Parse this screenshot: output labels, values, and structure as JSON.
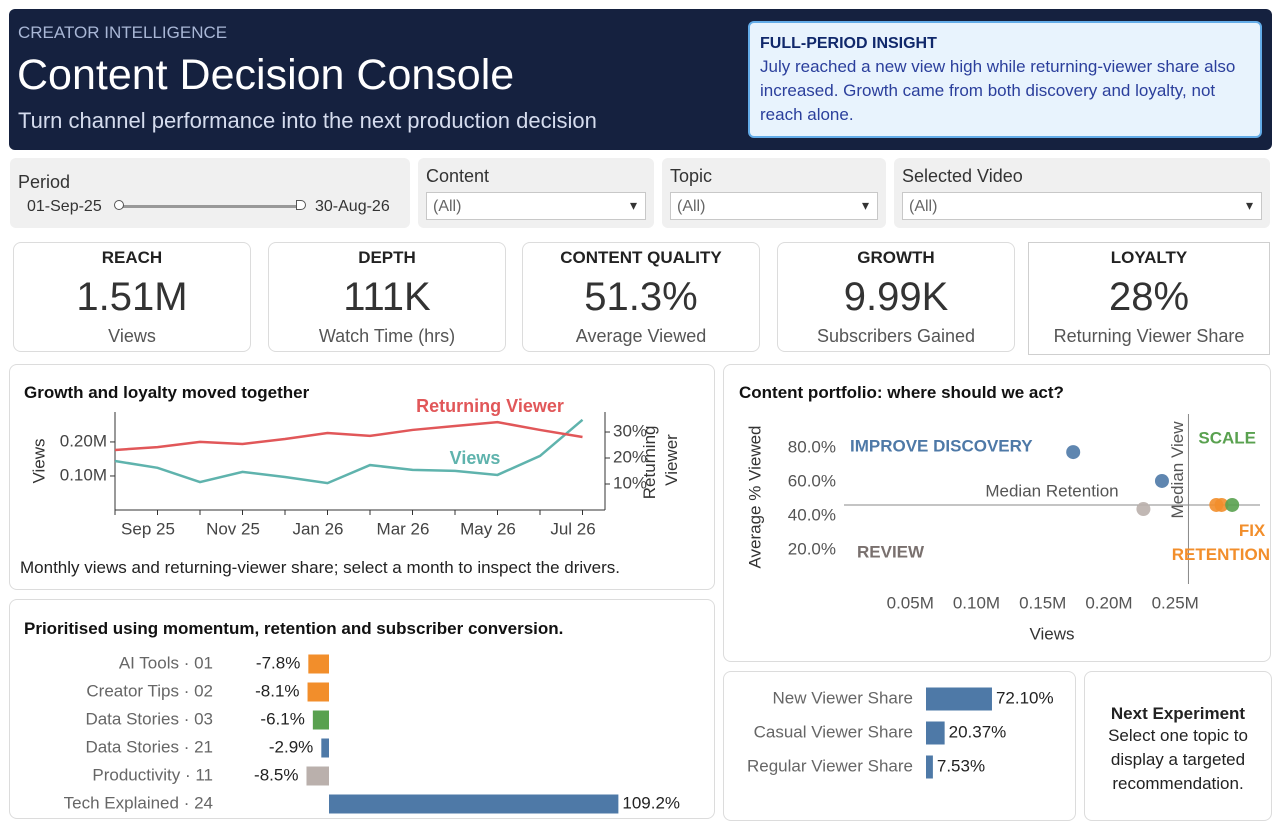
{
  "header": {
    "eyebrow": "CREATOR INTELLIGENCE",
    "title": "Content Decision Console",
    "subtitle": "Turn channel performance into the next production decision"
  },
  "insight": {
    "title": "FULL-PERIOD INSIGHT",
    "text": "July reached a new view high while returning-viewer share also increased. Growth came from both discovery and loyalty, not reach alone."
  },
  "filters": {
    "period": {
      "label": "Period",
      "start": "01-Sep-25",
      "end": "30-Aug-26"
    },
    "content": {
      "label": "Content",
      "value": "(All)"
    },
    "topic": {
      "label": "Topic",
      "value": "(All)"
    },
    "video": {
      "label": "Selected Video",
      "value": "(All)"
    }
  },
  "kpis": [
    {
      "label": "REACH",
      "value": "1.51M",
      "caption": "Views"
    },
    {
      "label": "DEPTH",
      "value": "111K",
      "caption": "Watch Time (hrs)"
    },
    {
      "label": "CONTENT QUALITY",
      "value": "51.3%",
      "caption": "Average Viewed"
    },
    {
      "label": "GROWTH",
      "value": "9.99K",
      "caption": "Subscribers Gained"
    },
    {
      "label": "LOYALTY",
      "value": "28%",
      "caption": "Returning Viewer Share"
    }
  ],
  "next_experiment": {
    "title": "Next Experiment",
    "text": "Select one topic to display a targeted recommendation."
  },
  "chart_data": [
    {
      "type": "line",
      "title": "Growth and loyalty moved together",
      "caption": "Monthly views and returning-viewer share; select a month to inspect the drivers.",
      "categories": [
        "Sep 25",
        null,
        "Nov 25",
        null,
        "Jan 26",
        null,
        "Mar 26",
        null,
        "May 26",
        null,
        "Jul 26",
        null
      ],
      "y_label": "Views",
      "y2_label": "Returning Viewer",
      "ylim": [
        0,
        288000
      ],
      "yticks": [
        {
          "value": 100000,
          "label": "0.10M"
        },
        {
          "value": 200000,
          "label": "0.20M"
        }
      ],
      "y2lim": [
        0,
        37.7
      ],
      "y2ticks": [
        {
          "value": 10,
          "label": "10%"
        },
        {
          "value": 20,
          "label": "20%"
        },
        {
          "value": 30,
          "label": "30%"
        }
      ],
      "series": [
        {
          "name": "Views",
          "color": "#5fb3ad",
          "values": [
            144000,
            124000,
            82000,
            112000,
            97000,
            79000,
            132000,
            118000,
            115000,
            103000,
            159000,
            265000
          ]
        },
        {
          "name": "Returning Viewer",
          "color": "#e15759",
          "axis": "y2",
          "values": [
            23.1,
            24.2,
            26.2,
            25.4,
            27.3,
            29.6,
            28.5,
            30.8,
            32.3,
            33.8,
            30.8,
            28.1
          ]
        }
      ]
    },
    {
      "type": "scatter",
      "title": "Content portfolio: where should we act?",
      "x_label": "Views",
      "y_label": "Average % Viewed",
      "xlim": [
        0,
        314000
      ],
      "xticks": [
        {
          "value": 50000,
          "label": "0.05M"
        },
        {
          "value": 100000,
          "label": "0.10M"
        },
        {
          "value": 150000,
          "label": "0.15M"
        },
        {
          "value": 200000,
          "label": "0.20M"
        },
        {
          "value": 250000,
          "label": "0.25M"
        }
      ],
      "ylim": [
        0,
        100
      ],
      "yticks": [
        {
          "value": 20,
          "label": "20.0%"
        },
        {
          "value": 40,
          "label": "40.0%"
        },
        {
          "value": 60,
          "label": "60.0%"
        },
        {
          "value": 80,
          "label": "80.0%"
        }
      ],
      "medians": {
        "x": {
          "label": "Median View",
          "value": 260000
        },
        "y": {
          "label": "Median Retention",
          "value": 46.5
        }
      },
      "quadrants": [
        {
          "label": "IMPROVE DISCOVERY",
          "color": "#4e79a7"
        },
        {
          "label": "SCALE",
          "color": "#59a14f"
        },
        {
          "label": "REVIEW",
          "color": "#79706e"
        },
        {
          "label": "FIX RETENTION",
          "color": "#f28e2b"
        }
      ],
      "series": [
        {
          "color": "#4e79a7",
          "x": [
            173000,
            240000
          ],
          "values": [
            77.6,
            60.6
          ]
        },
        {
          "color": "#bab0ac",
          "x": [
            226000
          ],
          "values": [
            44.1
          ]
        },
        {
          "color": "#f28e2b",
          "x": [
            281000,
            285000
          ],
          "values": [
            46.5,
            46.5
          ]
        },
        {
          "color": "#59a14f",
          "x": [
            293000
          ],
          "values": [
            46.5
          ]
        }
      ]
    },
    {
      "type": "bar",
      "orientation": "horizontal",
      "title": "Prioritised using momentum, retention and subscriber conversion.",
      "categories": [
        "AI Tools · 01",
        "Creator Tips · 02",
        "Data Stories · 03",
        "Data Stories · 21",
        "Productivity · 11",
        "Tech Explained · 24"
      ],
      "values": [
        -7.8,
        -8.1,
        -6.1,
        -2.9,
        -8.5,
        109.2
      ],
      "value_labels": [
        "-7.8%",
        "-8.1%",
        "-6.1%",
        "-2.9%",
        "-8.5%",
        "109.2%"
      ],
      "colors": [
        "#f28e2b",
        "#f28e2b",
        "#59a14f",
        "#4e79a7",
        "#bab0ac",
        "#4e79a7"
      ],
      "xlim": [
        -30,
        110
      ]
    },
    {
      "type": "bar",
      "orientation": "horizontal",
      "categories": [
        "New Viewer Share",
        "Casual Viewer Share",
        "Regular Viewer Share"
      ],
      "values": [
        72.1,
        20.37,
        7.53
      ],
      "value_labels": [
        "72.10%",
        "20.37%",
        "7.53%"
      ],
      "color": "#4e79a7",
      "xlim": [
        0,
        100
      ]
    }
  ]
}
